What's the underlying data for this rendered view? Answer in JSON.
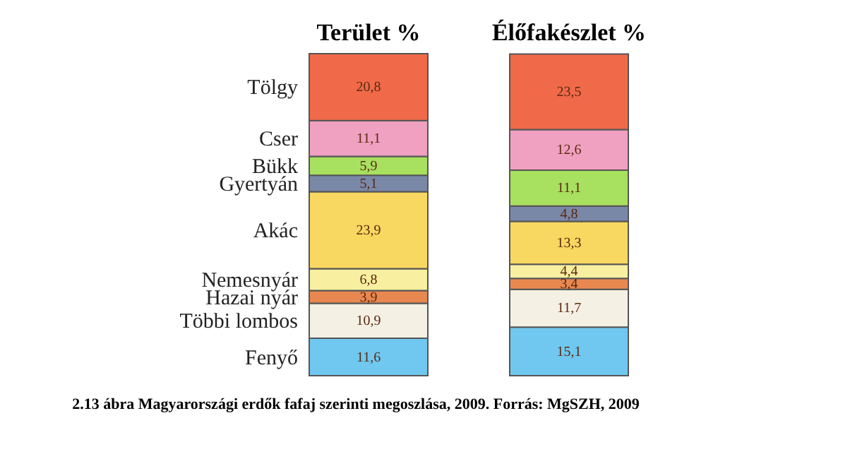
{
  "chart_data": {
    "type": "bar",
    "stacked": true,
    "categories": [
      "Terület %",
      "Élőfakészlet %"
    ],
    "series": [
      {
        "name": "Fenyő",
        "color": "#70c8f0",
        "values": [
          11.6,
          15.1
        ],
        "value_labels": [
          "11,6",
          "15,1"
        ]
      },
      {
        "name": "Többi lombos",
        "color": "#f4f0e4",
        "values": [
          10.9,
          11.7
        ],
        "value_labels": [
          "10,9",
          "11,7"
        ]
      },
      {
        "name": "Hazai nyár",
        "color": "#e88850",
        "values": [
          3.9,
          3.4
        ],
        "value_labels": [
          "3,9",
          "3,4"
        ]
      },
      {
        "name": "Nemesnyár",
        "color": "#f8f0a0",
        "values": [
          6.8,
          4.4
        ],
        "value_labels": [
          "6,8",
          "4,4"
        ]
      },
      {
        "name": "Akác",
        "color": "#f8d860",
        "values": [
          23.9,
          13.3
        ],
        "value_labels": [
          "23,9",
          "13,3"
        ]
      },
      {
        "name": "Gyertyán",
        "color": "#7a88a8",
        "values": [
          5.1,
          4.8
        ],
        "value_labels": [
          "5,1",
          "4,8"
        ]
      },
      {
        "name": "Bükk",
        "color": "#a8e060",
        "values": [
          5.9,
          11.1
        ],
        "value_labels": [
          "5,9",
          "11,1"
        ]
      },
      {
        "name": "Cser",
        "color": "#f0a0c0",
        "values": [
          11.1,
          12.6
        ],
        "value_labels": [
          "11,1",
          "12,6"
        ]
      },
      {
        "name": "Tölgy",
        "color": "#f06a4a",
        "values": [
          20.8,
          23.5
        ],
        "value_labels": [
          "20,8",
          "23,5"
        ]
      }
    ],
    "annotations": [
      "2.13 ábra Magyarországi erdők fafaj szerinti megoszlása, 2009. Forrás: MgSZH, 2009"
    ]
  }
}
